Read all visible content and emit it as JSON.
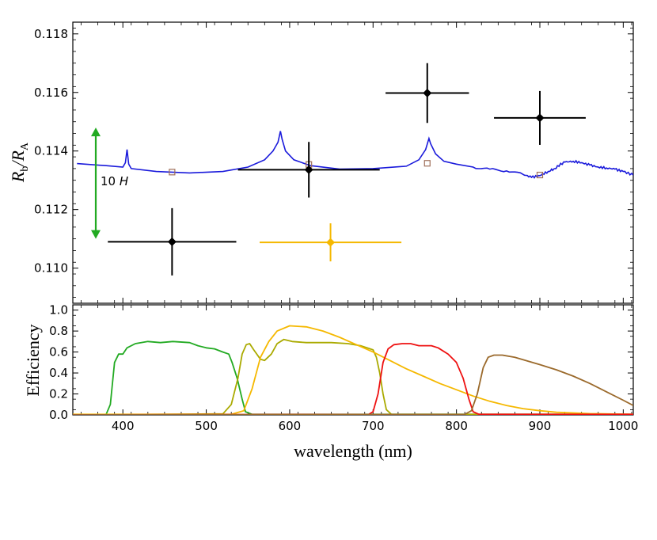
{
  "chart_data": [
    {
      "type": "scatter",
      "ylabel": {
        "r": "R",
        "b": "b",
        "slash": "/R",
        "a": "A"
      },
      "xlim": [
        340,
        1012
      ],
      "ylim": [
        0.1088,
        0.1184
      ],
      "yticks": [
        0.11,
        0.112,
        0.114,
        0.116,
        0.118
      ],
      "ytick_labels": [
        "0.110",
        "0.112",
        "0.114",
        "0.116",
        "0.118"
      ],
      "scale_bar": {
        "label_num": "10",
        "label_var": "H",
        "y_from": 0.111,
        "y_to": 0.1148,
        "color": "#22aa22"
      },
      "measurements": [
        {
          "x": 459,
          "xerr": 77,
          "y": 0.1109,
          "yerr": 0.00115,
          "color": "#000000"
        },
        {
          "x": 623,
          "xerr": 85,
          "y": 0.11336,
          "yerr": 0.00095,
          "color": "#000000"
        },
        {
          "x": 765,
          "xerr": 50,
          "y": 0.11598,
          "yerr": 0.00102,
          "color": "#000000"
        },
        {
          "x": 900,
          "xerr": 55,
          "y": 0.11513,
          "yerr": 0.00092,
          "color": "#000000"
        },
        {
          "x": 649,
          "xerr": 85,
          "y": 0.11088,
          "yerr": 0.00065,
          "color": "#f5b800"
        }
      ],
      "binned_model": [
        {
          "x": 459,
          "y": 0.11328
        },
        {
          "x": 623,
          "y": 0.11354
        },
        {
          "x": 765,
          "y": 0.11358
        },
        {
          "x": 900,
          "y": 0.11318
        }
      ],
      "model_spectrum": {
        "color": "#1a1adb",
        "points": [
          [
            345,
            0.11357
          ],
          [
            380,
            0.1135
          ],
          [
            400,
            0.11345
          ],
          [
            403,
            0.1136
          ],
          [
            405,
            0.11405
          ],
          [
            407,
            0.11355
          ],
          [
            410,
            0.1134
          ],
          [
            440,
            0.1133
          ],
          [
            480,
            0.11325
          ],
          [
            520,
            0.1133
          ],
          [
            550,
            0.11345
          ],
          [
            570,
            0.1137
          ],
          [
            580,
            0.114
          ],
          [
            586,
            0.1143
          ],
          [
            589,
            0.11468
          ],
          [
            591,
            0.1144
          ],
          [
            595,
            0.114
          ],
          [
            605,
            0.1137
          ],
          [
            625,
            0.1135
          ],
          [
            660,
            0.11338
          ],
          [
            700,
            0.1134
          ],
          [
            740,
            0.11348
          ],
          [
            755,
            0.1137
          ],
          [
            763,
            0.11405
          ],
          [
            767,
            0.11443
          ],
          [
            769,
            0.11425
          ],
          [
            775,
            0.1139
          ],
          [
            785,
            0.11365
          ],
          [
            800,
            0.11355
          ],
          [
            820,
            0.11345
          ],
          [
            840,
            0.11338
          ],
          [
            860,
            0.11332
          ],
          [
            880,
            0.1132
          ],
          [
            890,
            0.1131
          ],
          [
            900,
            0.11316
          ],
          [
            910,
            0.1133
          ],
          [
            918,
            0.1134
          ],
          [
            924,
            0.11353
          ],
          [
            930,
            0.11362
          ],
          [
            940,
            0.11365
          ],
          [
            950,
            0.1136
          ],
          [
            960,
            0.11352
          ],
          [
            970,
            0.11345
          ],
          [
            980,
            0.11342
          ],
          [
            990,
            0.11338
          ],
          [
            1000,
            0.1133
          ],
          [
            1012,
            0.11318
          ]
        ]
      }
    },
    {
      "type": "line",
      "xlabel": "wavelength (nm)",
      "ylabel": "Efficiency",
      "xlim": [
        340,
        1012
      ],
      "ylim": [
        0,
        1.05
      ],
      "xticks": [
        400,
        500,
        600,
        700,
        800,
        900,
        1000
      ],
      "xtick_labels": [
        "400",
        "500",
        "600",
        "700",
        "800",
        "900",
        "1000"
      ],
      "yticks": [
        0.0,
        0.2,
        0.4,
        0.6,
        0.8,
        1.0
      ],
      "ytick_labels": [
        "0.0",
        "0.2",
        "0.4",
        "0.6",
        "0.8",
        "1.0"
      ],
      "series": [
        {
          "color": "#22aa22",
          "points": [
            [
              340,
              0
            ],
            [
              380,
              0.005
            ],
            [
              385,
              0.1
            ],
            [
              390,
              0.5
            ],
            [
              395,
              0.58
            ],
            [
              400,
              0.58
            ],
            [
              405,
              0.64
            ],
            [
              415,
              0.68
            ],
            [
              430,
              0.7
            ],
            [
              445,
              0.69
            ],
            [
              460,
              0.7
            ],
            [
              480,
              0.69
            ],
            [
              490,
              0.66
            ],
            [
              500,
              0.64
            ],
            [
              510,
              0.63
            ],
            [
              520,
              0.6
            ],
            [
              527,
              0.58
            ],
            [
              531,
              0.5
            ],
            [
              537,
              0.35
            ],
            [
              543,
              0.15
            ],
            [
              547,
              0.03
            ],
            [
              555,
              0.005
            ],
            [
              1012,
              0.005
            ]
          ]
        },
        {
          "color": "#aaaa00",
          "points": [
            [
              340,
              0
            ],
            [
              520,
              0.01
            ],
            [
              530,
              0.1
            ],
            [
              538,
              0.35
            ],
            [
              543,
              0.58
            ],
            [
              548,
              0.67
            ],
            [
              552,
              0.68
            ],
            [
              557,
              0.62
            ],
            [
              565,
              0.53
            ],
            [
              570,
              0.52
            ],
            [
              578,
              0.58
            ],
            [
              585,
              0.68
            ],
            [
              593,
              0.72
            ],
            [
              603,
              0.7
            ],
            [
              620,
              0.69
            ],
            [
              650,
              0.69
            ],
            [
              670,
              0.68
            ],
            [
              685,
              0.66
            ],
            [
              693,
              0.64
            ],
            [
              700,
              0.62
            ],
            [
              704,
              0.55
            ],
            [
              708,
              0.4
            ],
            [
              712,
              0.2
            ],
            [
              716,
              0.05
            ],
            [
              722,
              0.005
            ],
            [
              1012,
              0.005
            ]
          ]
        },
        {
          "color": "#f5b800",
          "points": [
            [
              340,
              0.005
            ],
            [
              530,
              0.005
            ],
            [
              545,
              0.04
            ],
            [
              555,
              0.25
            ],
            [
              565,
              0.55
            ],
            [
              575,
              0.7
            ],
            [
              585,
              0.8
            ],
            [
              600,
              0.85
            ],
            [
              620,
              0.84
            ],
            [
              640,
              0.8
            ],
            [
              660,
              0.74
            ],
            [
              680,
              0.67
            ],
            [
              700,
              0.6
            ],
            [
              720,
              0.52
            ],
            [
              740,
              0.44
            ],
            [
              760,
              0.37
            ],
            [
              780,
              0.3
            ],
            [
              800,
              0.24
            ],
            [
              820,
              0.18
            ],
            [
              840,
              0.13
            ],
            [
              860,
              0.09
            ],
            [
              880,
              0.06
            ],
            [
              900,
              0.04
            ],
            [
              920,
              0.025
            ],
            [
              960,
              0.012
            ],
            [
              1012,
              0.005
            ]
          ]
        },
        {
          "color": "#ee1111",
          "points": [
            [
              340,
              0
            ],
            [
              695,
              0.005
            ],
            [
              700,
              0.03
            ],
            [
              706,
              0.2
            ],
            [
              712,
              0.5
            ],
            [
              718,
              0.63
            ],
            [
              725,
              0.67
            ],
            [
              735,
              0.68
            ],
            [
              745,
              0.68
            ],
            [
              755,
              0.66
            ],
            [
              770,
              0.66
            ],
            [
              778,
              0.64
            ],
            [
              790,
              0.58
            ],
            [
              800,
              0.5
            ],
            [
              808,
              0.35
            ],
            [
              815,
              0.15
            ],
            [
              820,
              0.03
            ],
            [
              827,
              0.005
            ],
            [
              1012,
              0.005
            ]
          ]
        },
        {
          "color": "#9b6a2c",
          "points": [
            [
              340,
              0
            ],
            [
              810,
              0.005
            ],
            [
              818,
              0.04
            ],
            [
              825,
              0.2
            ],
            [
              832,
              0.45
            ],
            [
              838,
              0.55
            ],
            [
              845,
              0.57
            ],
            [
              855,
              0.57
            ],
            [
              870,
              0.55
            ],
            [
              900,
              0.48
            ],
            [
              920,
              0.43
            ],
            [
              940,
              0.37
            ],
            [
              960,
              0.3
            ],
            [
              980,
              0.22
            ],
            [
              1000,
              0.14
            ],
            [
              1012,
              0.09
            ]
          ]
        }
      ]
    }
  ]
}
